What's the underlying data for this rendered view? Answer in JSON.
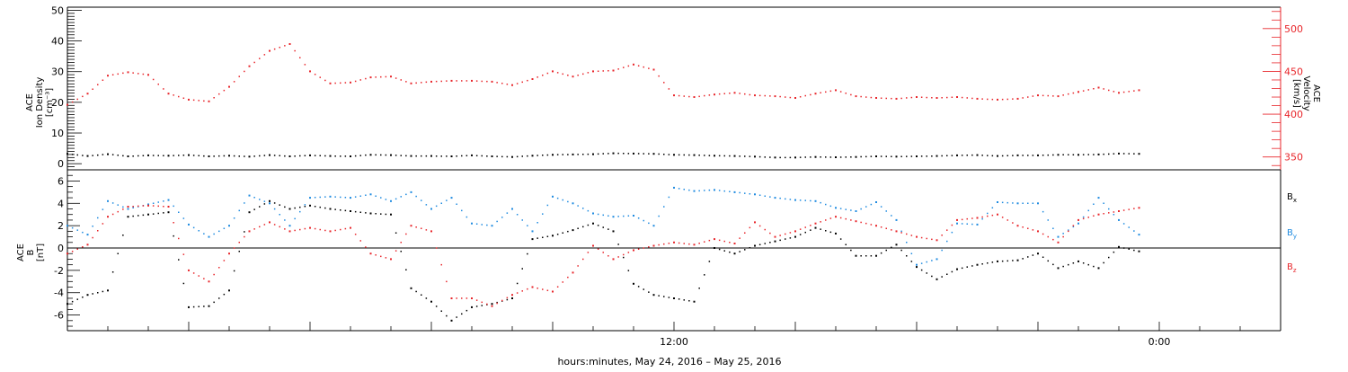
{
  "footer": {
    "caption": "hours:minutes, May 24, 2016 – May 25, 2016"
  },
  "colors": {
    "black": "#000000",
    "red": "#e8262b",
    "blue": "#1f8be0",
    "axis_red": "#e8262b"
  },
  "chart_data": [
    {
      "type": "scatter",
      "panel": "top",
      "ylabel_left": [
        "ACE",
        "Ion Density",
        "[cm⁻³]"
      ],
      "ylabel_right": [
        "ACE",
        "Velocity",
        "[km/s]"
      ],
      "ylim_left": [
        -2,
        51
      ],
      "ylim_right": [
        335,
        525
      ],
      "yticks_left": [
        0,
        10,
        20,
        30,
        40,
        50
      ],
      "yticks_right": [
        350,
        400,
        450,
        500
      ],
      "xlim_hours": [
        -3,
        27
      ],
      "xtick_labels": [
        {
          "hour": 12,
          "label": "12:00"
        },
        {
          "hour": 24,
          "label": "0:00"
        }
      ],
      "series": [
        {
          "color": "black",
          "axis": "left",
          "points": [
            [
              -3,
              3.2
            ],
            [
              -2.5,
              2.5
            ],
            [
              -2,
              3.1
            ],
            [
              -1.5,
              2.4
            ],
            [
              -1,
              2.7
            ],
            [
              -0.5,
              2.6
            ],
            [
              0,
              2.8
            ],
            [
              0.5,
              2.4
            ],
            [
              1,
              2.6
            ],
            [
              1.5,
              2.3
            ],
            [
              2,
              2.8
            ],
            [
              2.5,
              2.4
            ],
            [
              3,
              2.7
            ],
            [
              3.5,
              2.5
            ],
            [
              4,
              2.4
            ],
            [
              4.5,
              2.9
            ],
            [
              5,
              2.8
            ],
            [
              5.5,
              2.5
            ],
            [
              6,
              2.5
            ],
            [
              6.5,
              2.4
            ],
            [
              7,
              2.7
            ],
            [
              7.5,
              2.4
            ],
            [
              8,
              2.2
            ],
            [
              8.5,
              2.6
            ],
            [
              9,
              2.9
            ],
            [
              9.5,
              3
            ],
            [
              10,
              3.1
            ],
            [
              10.5,
              3.4
            ],
            [
              11,
              3.3
            ],
            [
              11.5,
              3.2
            ],
            [
              12,
              2.9
            ],
            [
              12.5,
              2.8
            ],
            [
              13,
              2.6
            ],
            [
              13.5,
              2.5
            ],
            [
              14,
              2.3
            ],
            [
              14.5,
              2
            ],
            [
              15,
              2
            ],
            [
              15.5,
              2.2
            ],
            [
              16,
              2.1
            ],
            [
              16.5,
              2.2
            ],
            [
              17,
              2.4
            ],
            [
              17.5,
              2.3
            ],
            [
              18,
              2.4
            ],
            [
              18.5,
              2.5
            ],
            [
              19,
              2.7
            ],
            [
              19.5,
              2.8
            ],
            [
              20,
              2.5
            ],
            [
              20.5,
              2.7
            ],
            [
              21,
              2.7
            ],
            [
              21.5,
              2.9
            ],
            [
              22,
              2.9
            ],
            [
              22.5,
              3
            ],
            [
              23,
              3.3
            ],
            [
              23.5,
              3.2
            ]
          ]
        },
        {
          "color": "red",
          "axis": "right",
          "points": [
            [
              -3,
              411
            ],
            [
              -2.5,
              424
            ],
            [
              -2,
              445
            ],
            [
              -1.5,
              449
            ],
            [
              -1,
              446
            ],
            [
              -0.5,
              424
            ],
            [
              0,
              417
            ],
            [
              0.5,
              415
            ],
            [
              1,
              432
            ],
            [
              1.5,
              456
            ],
            [
              2,
              474
            ],
            [
              2.5,
              482
            ],
            [
              3,
              450
            ],
            [
              3.5,
              436
            ],
            [
              4,
              437
            ],
            [
              4.5,
              443
            ],
            [
              5,
              444
            ],
            [
              5.5,
              436
            ],
            [
              6,
              438
            ],
            [
              6.5,
              439
            ],
            [
              7,
              439
            ],
            [
              7.5,
              438
            ],
            [
              8,
              434
            ],
            [
              8.5,
              441
            ],
            [
              9,
              450
            ],
            [
              9.5,
              444
            ],
            [
              10,
              450
            ],
            [
              10.5,
              451
            ],
            [
              11,
              458
            ],
            [
              11.5,
              452
            ],
            [
              12,
              422
            ],
            [
              12.5,
              420
            ],
            [
              13,
              423
            ],
            [
              13.5,
              425
            ],
            [
              14,
              422
            ],
            [
              14.5,
              421
            ],
            [
              15,
              419
            ],
            [
              15.5,
              424
            ],
            [
              16,
              428
            ],
            [
              16.5,
              421
            ],
            [
              17,
              419
            ],
            [
              17.5,
              418
            ],
            [
              18,
              420
            ],
            [
              18.5,
              419
            ],
            [
              19,
              420
            ],
            [
              19.5,
              418
            ],
            [
              20,
              417
            ],
            [
              20.5,
              418
            ],
            [
              21,
              422
            ],
            [
              21.5,
              421
            ],
            [
              22,
              426
            ],
            [
              22.5,
              431
            ],
            [
              23,
              425
            ],
            [
              23.5,
              428
            ]
          ]
        }
      ]
    },
    {
      "type": "scatter",
      "panel": "bottom",
      "ylabel": [
        "ACE",
        "B",
        "[nT]"
      ],
      "ylim": [
        -7.4,
        7
      ],
      "yticks": [
        -6,
        -4,
        -2,
        0,
        2,
        4,
        6
      ],
      "xlim_hours": [
        -3,
        27
      ],
      "legend": [
        "Bx",
        "By",
        "Bz"
      ],
      "series": [
        {
          "color": "black",
          "name": "Bx",
          "points": [
            [
              -3,
              -5
            ],
            [
              -2.5,
              -4.2
            ],
            [
              -2,
              -3.8
            ],
            [
              -1.5,
              2.8
            ],
            [
              -1,
              3
            ],
            [
              -0.5,
              3.2
            ],
            [
              0,
              -5.3
            ],
            [
              0.5,
              -5.2
            ],
            [
              1,
              -3.8
            ],
            [
              1.5,
              3.2
            ],
            [
              2,
              4.2
            ],
            [
              2.5,
              3.5
            ],
            [
              3,
              3.8
            ],
            [
              3.5,
              3.5
            ],
            [
              4,
              3.3
            ],
            [
              4.5,
              3.1
            ],
            [
              5,
              3
            ],
            [
              5.5,
              -3.6
            ],
            [
              6,
              -4.8
            ],
            [
              6.5,
              -6.5
            ],
            [
              7,
              -5.3
            ],
            [
              7.5,
              -5
            ],
            [
              8,
              -4.5
            ],
            [
              8.5,
              0.8
            ],
            [
              9,
              1.1
            ],
            [
              9.5,
              1.6
            ],
            [
              10,
              2.2
            ],
            [
              10.5,
              1.5
            ],
            [
              11,
              -3.2
            ],
            [
              11.5,
              -4.2
            ],
            [
              12,
              -4.5
            ],
            [
              12.5,
              -4.8
            ],
            [
              13,
              0
            ],
            [
              13.5,
              -0.5
            ],
            [
              14,
              0.2
            ],
            [
              14.5,
              0.6
            ],
            [
              15,
              1
            ],
            [
              15.5,
              1.8
            ],
            [
              16,
              1.3
            ],
            [
              16.5,
              -0.7
            ],
            [
              17,
              -0.7
            ],
            [
              17.5,
              0.3
            ],
            [
              18,
              -1.7
            ],
            [
              18.5,
              -2.8
            ],
            [
              19,
              -1.9
            ],
            [
              19.5,
              -1.5
            ],
            [
              20,
              -1.2
            ],
            [
              20.5,
              -1.1
            ],
            [
              21,
              -0.5
            ],
            [
              21.5,
              -1.8
            ],
            [
              22,
              -1.2
            ],
            [
              22.5,
              -1.8
            ],
            [
              23,
              0.1
            ],
            [
              23.5,
              -0.3
            ]
          ]
        },
        {
          "color": "blue",
          "name": "By",
          "points": [
            [
              -3,
              2
            ],
            [
              -2.5,
              1.2
            ],
            [
              -2,
              4.2
            ],
            [
              -1.5,
              3.5
            ],
            [
              -1,
              3.9
            ],
            [
              -0.5,
              4.3
            ],
            [
              0,
              2.1
            ],
            [
              0.5,
              1
            ],
            [
              1,
              2
            ],
            [
              1.5,
              4.7
            ],
            [
              2,
              4
            ],
            [
              2.5,
              2
            ],
            [
              3,
              4.5
            ],
            [
              3.5,
              4.6
            ],
            [
              4,
              4.5
            ],
            [
              4.5,
              4.8
            ],
            [
              5,
              4.2
            ],
            [
              5.5,
              5
            ],
            [
              6,
              3.5
            ],
            [
              6.5,
              4.5
            ],
            [
              7,
              2.2
            ],
            [
              7.5,
              2
            ],
            [
              8,
              3.5
            ],
            [
              8.5,
              1.5
            ],
            [
              9,
              4.6
            ],
            [
              9.5,
              4
            ],
            [
              10,
              3.1
            ],
            [
              10.5,
              2.8
            ],
            [
              11,
              2.9
            ],
            [
              11.5,
              2
            ],
            [
              12,
              5.4
            ],
            [
              12.5,
              5.1
            ],
            [
              13,
              5.2
            ],
            [
              13.5,
              5
            ],
            [
              14,
              4.8
            ],
            [
              14.5,
              4.5
            ],
            [
              15,
              4.3
            ],
            [
              15.5,
              4.2
            ],
            [
              16,
              3.6
            ],
            [
              16.5,
              3.3
            ],
            [
              17,
              4.1
            ],
            [
              17.5,
              2.5
            ],
            [
              18,
              -1.5
            ],
            [
              18.5,
              -1
            ],
            [
              19,
              2.2
            ],
            [
              19.5,
              2.1
            ],
            [
              20,
              4.1
            ],
            [
              20.5,
              4
            ],
            [
              21,
              4
            ],
            [
              21.5,
              1
            ],
            [
              22,
              2.2
            ],
            [
              22.5,
              4.5
            ],
            [
              23,
              2.5
            ],
            [
              23.5,
              1.2
            ]
          ]
        },
        {
          "color": "red",
          "name": "Bz",
          "points": [
            [
              -3,
              -0.5
            ],
            [
              -2.5,
              0.3
            ],
            [
              -2,
              2.8
            ],
            [
              -1.5,
              3.7
            ],
            [
              -1,
              3.8
            ],
            [
              -0.5,
              3.7
            ],
            [
              0,
              -2
            ],
            [
              0.5,
              -3
            ],
            [
              1,
              -0.5
            ],
            [
              1.5,
              1.5
            ],
            [
              2,
              2.3
            ],
            [
              2.5,
              1.5
            ],
            [
              3,
              1.8
            ],
            [
              3.5,
              1.5
            ],
            [
              4,
              1.8
            ],
            [
              4.5,
              -0.5
            ],
            [
              5,
              -1
            ],
            [
              5.5,
              2
            ],
            [
              6,
              1.5
            ],
            [
              6.5,
              -4.5
            ],
            [
              7,
              -4.5
            ],
            [
              7.5,
              -5.2
            ],
            [
              8,
              -4.2
            ],
            [
              8.5,
              -3.5
            ],
            [
              9,
              -3.9
            ],
            [
              9.5,
              -2.2
            ],
            [
              10,
              0.2
            ],
            [
              10.5,
              -1
            ],
            [
              11,
              -0.2
            ],
            [
              11.5,
              0.2
            ],
            [
              12,
              0.5
            ],
            [
              12.5,
              0.3
            ],
            [
              13,
              0.8
            ],
            [
              13.5,
              0.4
            ],
            [
              14,
              2.3
            ],
            [
              14.5,
              1
            ],
            [
              15,
              1.5
            ],
            [
              15.5,
              2.2
            ],
            [
              16,
              2.8
            ],
            [
              16.5,
              2.4
            ],
            [
              17,
              2
            ],
            [
              17.5,
              1.5
            ],
            [
              18,
              1
            ],
            [
              18.5,
              0.7
            ],
            [
              19,
              2.5
            ],
            [
              19.5,
              2.7
            ],
            [
              20,
              3
            ],
            [
              20.5,
              2
            ],
            [
              21,
              1.5
            ],
            [
              21.5,
              0.5
            ],
            [
              22,
              2.5
            ],
            [
              22.5,
              3
            ],
            [
              23,
              3.3
            ],
            [
              23.5,
              3.6
            ]
          ]
        }
      ]
    }
  ]
}
